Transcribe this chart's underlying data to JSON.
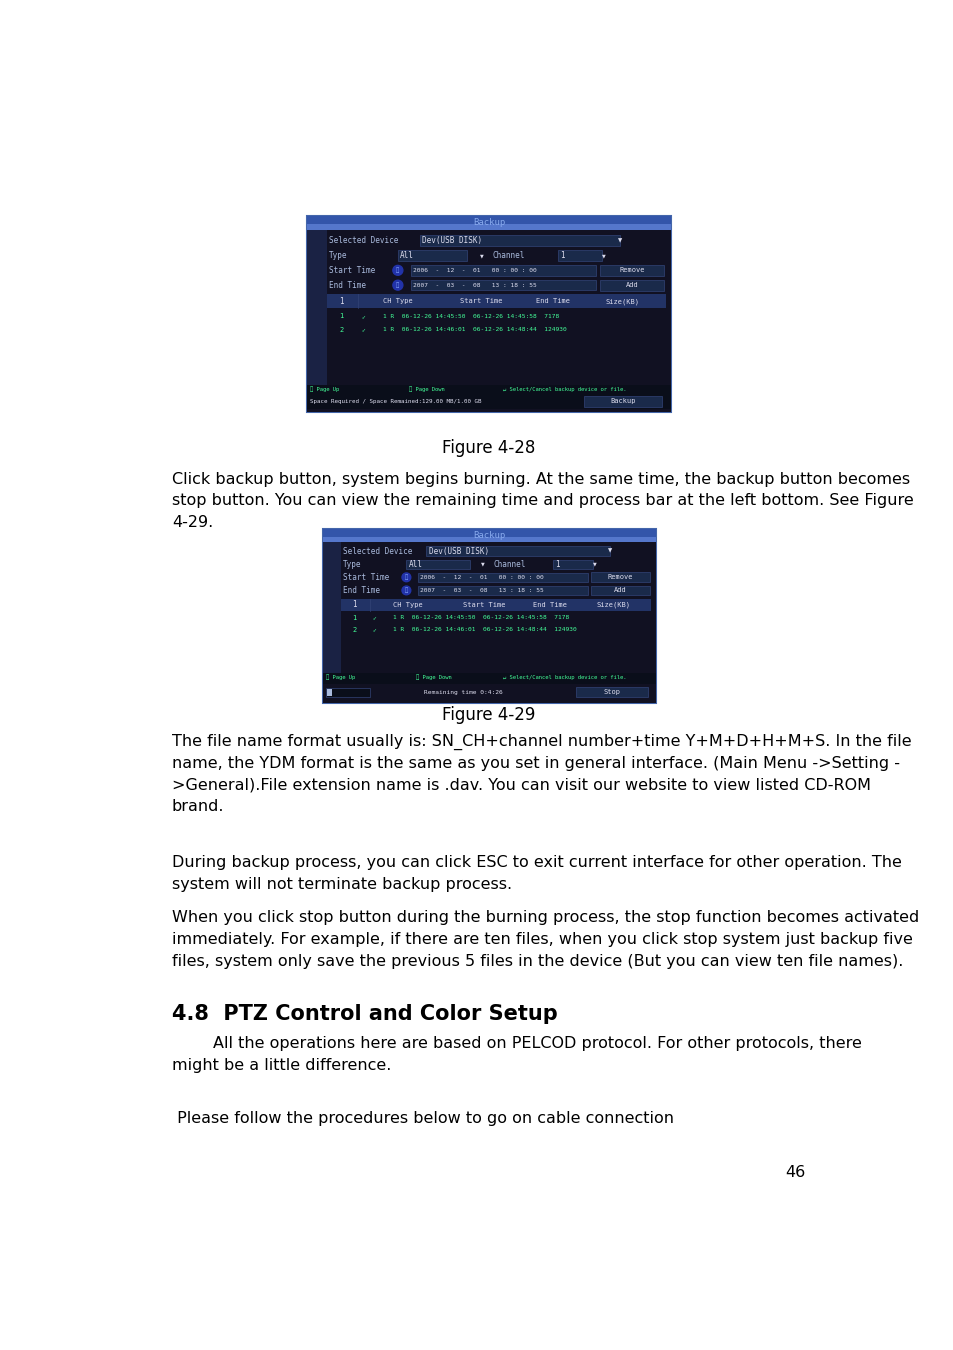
{
  "page_bg": "#ffffff",
  "fig1_caption": "Figure 4-28",
  "fig2_caption": "Figure 4-29",
  "para1": "Click backup button, system begins burning. At the same time, the backup button becomes\nstop button. You can view the remaining time and process bar at the left bottom. See Figure\n4-29.",
  "para2": "The file name format usually is: SN_CH+channel number+time Y+M+D+H+M+S. In the file\nname, the YDM format is the same as you set in general interface. (Main Menu ->Setting -\n>General).File extension name is .dav. You can visit our website to view listed CD-ROM\nbrand.",
  "para3": "During backup process, you can click ESC to exit current interface for other operation. The\nsystem will not terminate backup process.",
  "para4": "When you click stop button during the burning process, the stop function becomes activated\nimmediately. For example, if there are ten files, when you click stop system just backup five\nfiles, system only save the previous 5 files in the device (But you can view ten file names).",
  "section_heading": "4.8  PTZ Control and Color Setup",
  "section_para": "        All the operations here are based on PELCOD protocol. For other protocols, there\nmight be a little difference.",
  "cable_para": " Please follow the procedures below to go on cable connection",
  "page_num": "46",
  "body_font_size": 11.5,
  "section_font_size": 15,
  "caption_font_size": 12
}
